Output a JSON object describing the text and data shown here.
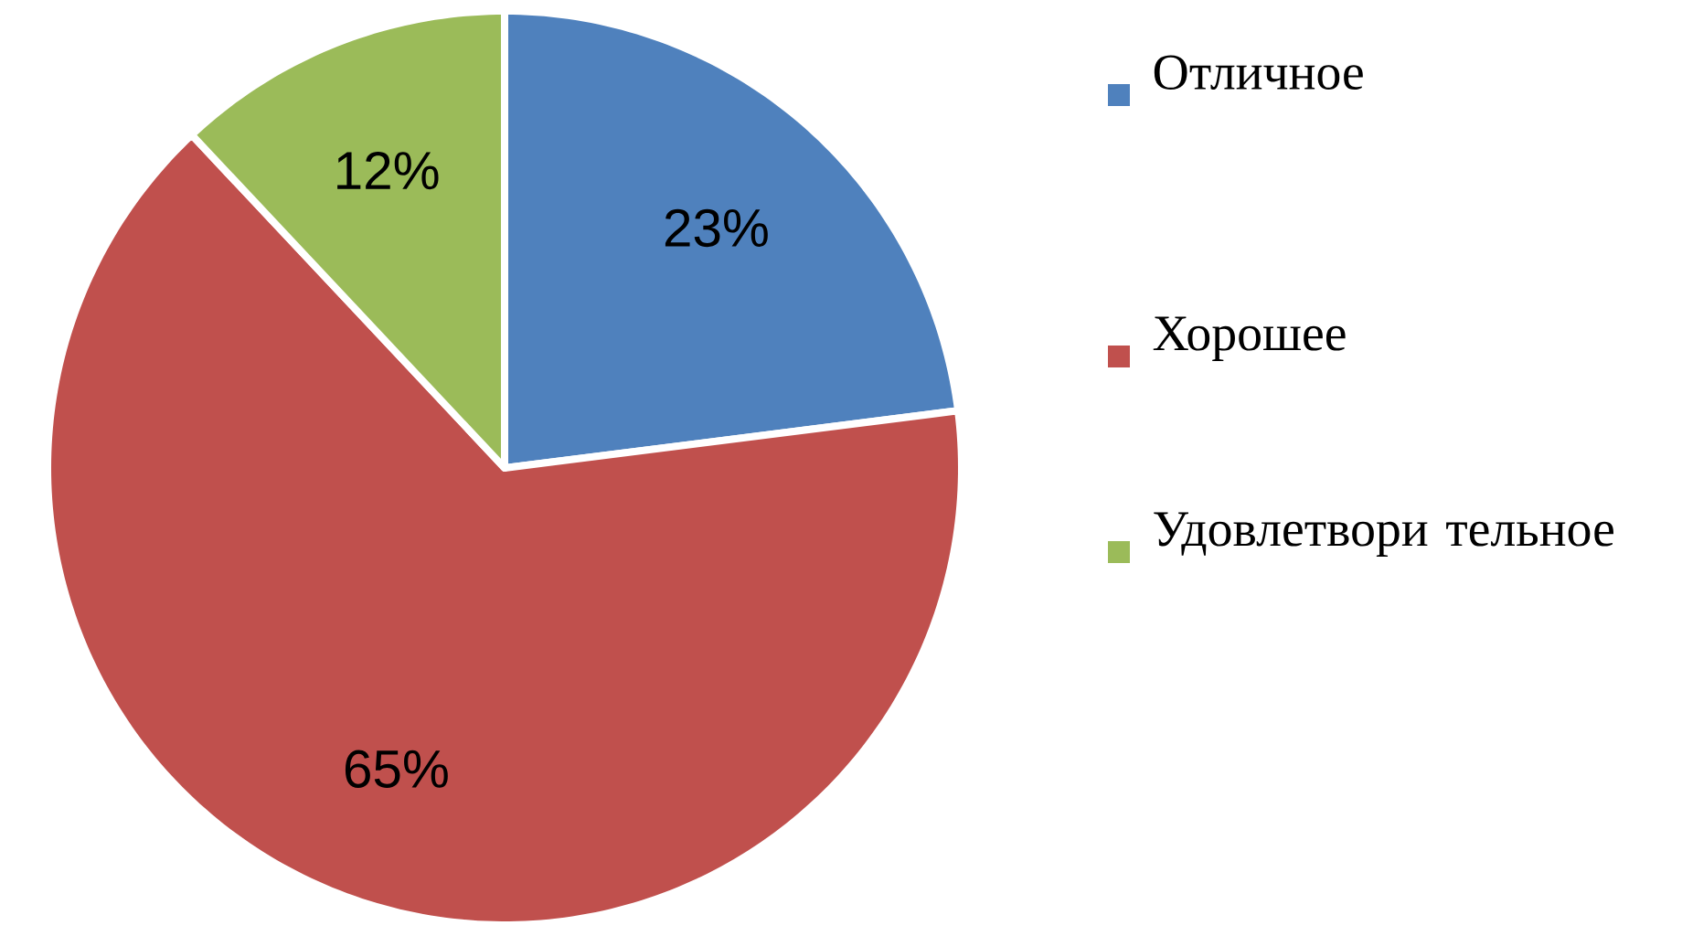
{
  "chart_data": {
    "type": "pie",
    "categories": [
      "Отличное",
      "Хорошее",
      "Удовлетвори тельное"
    ],
    "values": [
      23,
      65,
      12
    ],
    "colors": [
      "#4f81bd",
      "#c0504d",
      "#9bbb59"
    ],
    "value_labels": [
      "23%",
      "65%",
      "12%"
    ],
    "legend": "right"
  }
}
